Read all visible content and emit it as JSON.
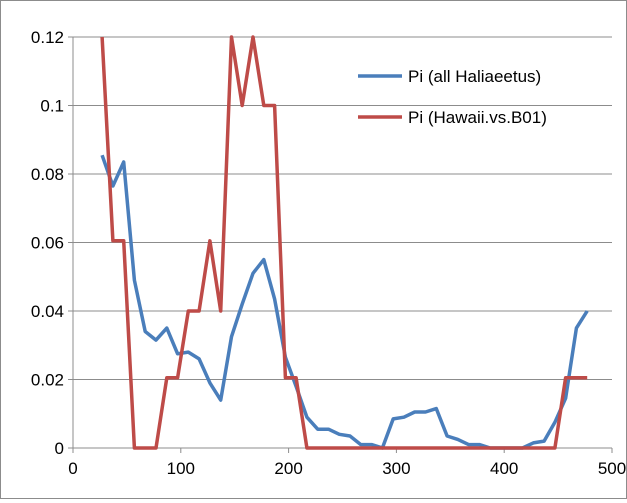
{
  "chart_data": {
    "type": "line",
    "title": "",
    "xlabel": "",
    "ylabel": "",
    "xlim": [
      0,
      500
    ],
    "ylim": [
      0,
      0.12
    ],
    "xticks": [
      0,
      100,
      200,
      300,
      400,
      500
    ],
    "xtick_labels": [
      "0",
      "100",
      "200",
      "300",
      "400",
      "500"
    ],
    "yticks": [
      0,
      0.02,
      0.04,
      0.06,
      0.08,
      0.1,
      0.12
    ],
    "ytick_labels": [
      "0",
      "0.02",
      "0.04",
      "0.06",
      "0.08",
      "0.1",
      "0.12"
    ],
    "grid": "horizontal",
    "legend_position": "top-right",
    "series": [
      {
        "name": "Pi (all Haliaeetus)",
        "color": "#4a7ebb",
        "points": [
          [
            27,
            0.0855
          ],
          [
            37,
            0.0765
          ],
          [
            47,
            0.0835
          ],
          [
            57,
            0.049
          ],
          [
            67,
            0.034
          ],
          [
            77,
            0.0315
          ],
          [
            87,
            0.035
          ],
          [
            97,
            0.0275
          ],
          [
            107,
            0.028
          ],
          [
            117,
            0.026
          ],
          [
            127,
            0.019
          ],
          [
            137,
            0.014
          ],
          [
            147,
            0.0325
          ],
          [
            157,
            0.042
          ],
          [
            167,
            0.051
          ],
          [
            177,
            0.055
          ],
          [
            187,
            0.0435
          ],
          [
            197,
            0.0265
          ],
          [
            207,
            0.018
          ],
          [
            217,
            0.009
          ],
          [
            227,
            0.0055
          ],
          [
            237,
            0.0055
          ],
          [
            247,
            0.004
          ],
          [
            257,
            0.0035
          ],
          [
            267,
            0.001
          ],
          [
            277,
            0.001
          ],
          [
            287,
            0.0
          ],
          [
            297,
            0.0085
          ],
          [
            307,
            0.009
          ],
          [
            317,
            0.0105
          ],
          [
            327,
            0.0105
          ],
          [
            337,
            0.0115
          ],
          [
            347,
            0.0035
          ],
          [
            357,
            0.0025
          ],
          [
            367,
            0.001
          ],
          [
            377,
            0.001
          ],
          [
            387,
            0.0
          ],
          [
            397,
            0.0
          ],
          [
            407,
            0.0
          ],
          [
            417,
            0.0
          ],
          [
            427,
            0.0015
          ],
          [
            437,
            0.002
          ],
          [
            447,
            0.0075
          ],
          [
            457,
            0.0145
          ],
          [
            467,
            0.035
          ],
          [
            477,
            0.04
          ]
        ]
      },
      {
        "name": "Pi (Hawaii.vs.B01)",
        "color": "#be4b48",
        "points": [
          [
            27,
            0.12
          ],
          [
            37,
            0.0605
          ],
          [
            47,
            0.0605
          ],
          [
            57,
            0.0
          ],
          [
            67,
            0.0
          ],
          [
            77,
            0.0
          ],
          [
            87,
            0.0205
          ],
          [
            97,
            0.0205
          ],
          [
            107,
            0.04
          ],
          [
            117,
            0.04
          ],
          [
            127,
            0.0605
          ],
          [
            137,
            0.04
          ],
          [
            147,
            0.12
          ],
          [
            157,
            0.1
          ],
          [
            167,
            0.12
          ],
          [
            177,
            0.1
          ],
          [
            187,
            0.1
          ],
          [
            197,
            0.0205
          ],
          [
            207,
            0.0205
          ],
          [
            217,
            0.0
          ],
          [
            227,
            0.0
          ],
          [
            237,
            0.0
          ],
          [
            247,
            0.0
          ],
          [
            257,
            0.0
          ],
          [
            267,
            0.0
          ],
          [
            277,
            0.0
          ],
          [
            287,
            0.0
          ],
          [
            297,
            0.0
          ],
          [
            307,
            0.0
          ],
          [
            317,
            0.0
          ],
          [
            327,
            0.0
          ],
          [
            337,
            0.0
          ],
          [
            347,
            0.0
          ],
          [
            357,
            0.0
          ],
          [
            367,
            0.0
          ],
          [
            377,
            0.0
          ],
          [
            387,
            0.0
          ],
          [
            397,
            0.0
          ],
          [
            407,
            0.0
          ],
          [
            417,
            0.0
          ],
          [
            427,
            0.0
          ],
          [
            437,
            0.0
          ],
          [
            447,
            0.0
          ],
          [
            457,
            0.0205
          ],
          [
            467,
            0.0205
          ],
          [
            477,
            0.0205
          ]
        ]
      }
    ]
  }
}
